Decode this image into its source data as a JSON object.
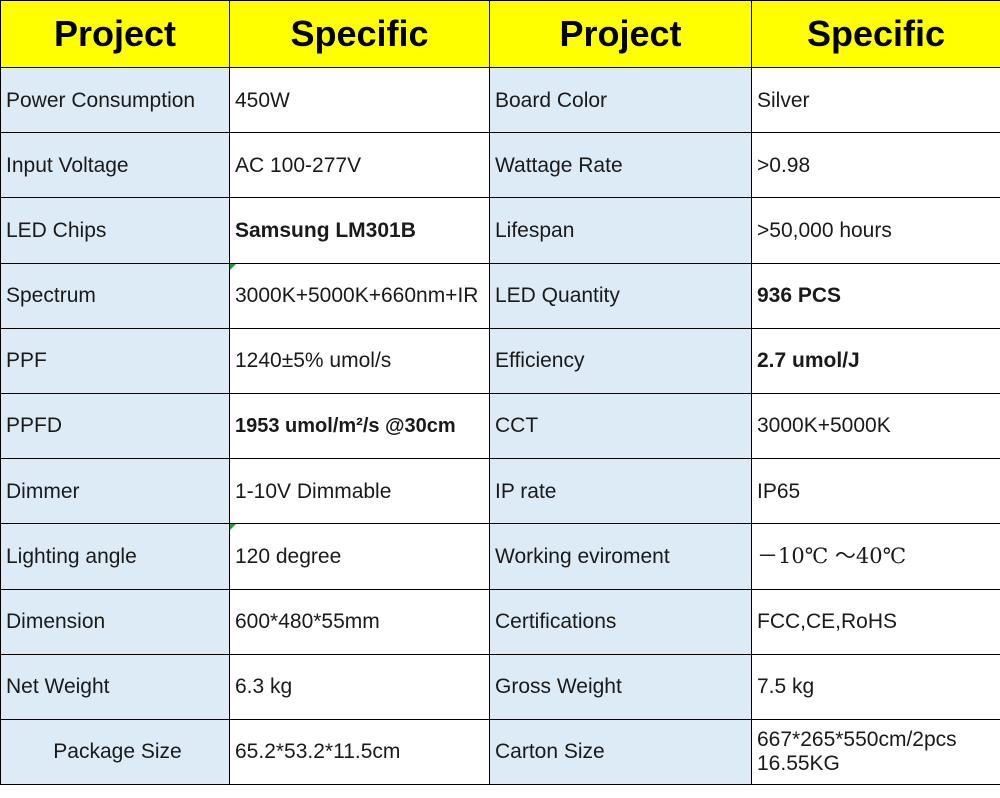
{
  "header": [
    "Project",
    "Specific",
    "Project",
    "Specific"
  ],
  "rows": [
    {
      "p1": "Power Consumption",
      "s1": "450W",
      "p2": "Board Color",
      "s2": "Silver"
    },
    {
      "p1": "Input Voltage",
      "s1": "AC 100-277V",
      "p2": "Wattage Rate",
      "s2": ">0.98"
    },
    {
      "p1": "LED Chips",
      "s1": "Samsung LM301B",
      "p2": "Lifespan",
      "s2": ">50,000 hours"
    },
    {
      "p1": "Spectrum",
      "s1": "3000K+5000K+660nm+IR",
      "p2": "LED Quantity",
      "s2": "936 PCS"
    },
    {
      "p1": "PPF",
      "s1": "1240±5% umol/s",
      "p2": "Efficiency",
      "s2": "2.7 umol/J"
    },
    {
      "p1": "PPFD",
      "s1": "1953 umol/m²/s @30cm",
      "p2": "CCT",
      "s2": "3000K+5000K"
    },
    {
      "p1": "Dimmer",
      "s1": "1-10V Dimmable",
      "p2": "IP rate",
      "s2": "IP65"
    },
    {
      "p1": "Lighting angle",
      "s1": "120 degree",
      "p2": "Working eviroment",
      "s2": "－10℃ ～40℃"
    },
    {
      "p1": "Dimension",
      "s1": "600*480*55mm",
      "p2": "Certifications",
      "s2": "FCC,CE,RoHS"
    },
    {
      "p1": "Net Weight",
      "s1": "6.3 kg",
      "p2": "Gross Weight",
      "s2": "7.5 kg"
    },
    {
      "p1": "Package Size",
      "s1": "65.2*53.2*11.5cm",
      "p2": "Carton Size",
      "s2": "667*265*550cm/2pcs 16.55KG"
    }
  ]
}
